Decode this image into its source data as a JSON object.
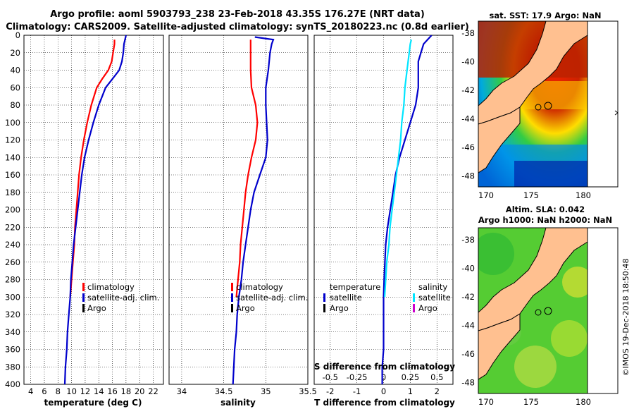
{
  "title": {
    "line1": "Argo profile: aoml 5903793_238 23-Feb-2018 43.35S 176.27E (NRT data)",
    "line2": "Climatology: CARS2009. Satellite-adjusted climatology: synTS_20180223.nc (0.8d earlier)"
  },
  "colors": {
    "climatology": "#ff0000",
    "satellite": "#0000cc",
    "argo": "#000000",
    "salinity_satellite": "#00e5ff",
    "salinity_argo": "#cc00cc"
  },
  "chart_data": [
    {
      "type": "line",
      "name": "temperature",
      "xlabel": "temperature (deg C)",
      "xlim": [
        3,
        23.5
      ],
      "xticks": [
        "4",
        "6",
        "8",
        "10",
        "12",
        "14",
        "16",
        "18",
        "20",
        "22"
      ],
      "ylim": [
        0,
        400
      ],
      "yticks": [
        "0",
        "20",
        "40",
        "60",
        "80",
        "100",
        "120",
        "140",
        "160",
        "180",
        "200",
        "220",
        "240",
        "260",
        "280",
        "300",
        "320",
        "340",
        "360",
        "380",
        "400"
      ],
      "series": [
        {
          "name": "climatology",
          "color": "#ff0000",
          "depth": [
            5,
            10,
            20,
            30,
            40,
            50,
            60,
            80,
            100,
            120,
            140,
            160,
            180,
            200,
            220,
            240,
            260,
            280,
            300
          ],
          "values": [
            16.3,
            16.3,
            16.1,
            15.9,
            15.4,
            14.5,
            13.7,
            12.9,
            12.3,
            11.8,
            11.4,
            11.1,
            10.9,
            10.7,
            10.5,
            10.4,
            10.2,
            10.0,
            9.8
          ]
        },
        {
          "name": "satellite-adj. clim.",
          "color": "#0000cc",
          "depth": [
            0,
            10,
            20,
            30,
            40,
            50,
            60,
            80,
            100,
            120,
            140,
            160,
            180,
            200,
            220,
            240,
            260,
            280,
            300,
            320,
            340,
            360,
            380,
            400
          ],
          "values": [
            18.0,
            17.7,
            17.6,
            17.4,
            17.0,
            16.0,
            15.0,
            14.0,
            13.2,
            12.5,
            11.9,
            11.5,
            11.2,
            10.9,
            10.6,
            10.3,
            10.1,
            9.9,
            9.8,
            9.6,
            9.4,
            9.3,
            9.1,
            9.0
          ]
        }
      ],
      "legend": [
        "climatology",
        "satellite-adj. clim.",
        "Argo"
      ]
    },
    {
      "type": "line",
      "name": "salinity",
      "xlabel": "salinity",
      "xlim": [
        33.85,
        35.5
      ],
      "xticks": [
        "34",
        "34.5",
        "35",
        "35.5"
      ],
      "ylim": [
        0,
        400
      ],
      "series": [
        {
          "name": "climatology",
          "color": "#ff0000",
          "depth": [
            5,
            20,
            40,
            60,
            80,
            100,
            120,
            140,
            160,
            180,
            200,
            220,
            240,
            260,
            280,
            300
          ],
          "values": [
            34.82,
            34.82,
            34.82,
            34.83,
            34.88,
            34.9,
            34.88,
            34.83,
            34.79,
            34.76,
            34.74,
            34.72,
            34.7,
            34.69,
            34.67,
            34.65
          ]
        },
        {
          "name": "satellite-adj. clim.",
          "color": "#0000cc",
          "depth": [
            2,
            5,
            10,
            20,
            40,
            60,
            80,
            100,
            120,
            140,
            160,
            180,
            200,
            220,
            240,
            260,
            280,
            300,
            320,
            340,
            360,
            380,
            400
          ],
          "values": [
            34.87,
            35.09,
            35.07,
            35.05,
            35.03,
            35.0,
            35.0,
            35.01,
            35.02,
            35.0,
            34.93,
            34.86,
            34.82,
            34.79,
            34.76,
            34.73,
            34.71,
            34.68,
            34.66,
            34.65,
            34.63,
            34.62,
            34.61
          ]
        }
      ],
      "legend": [
        "climatology",
        "satellite-adj. clim.",
        "Argo"
      ]
    },
    {
      "type": "line",
      "name": "difference from climatology",
      "xlabel": "T difference from climatology",
      "xlim": [
        -2.6,
        2.6
      ],
      "xticks": [
        "-2",
        "-1",
        "0",
        "1",
        "2"
      ],
      "top_xlabel": "S difference from climatology",
      "top_xticks": [
        "-0.5",
        "-0.25",
        "0",
        "0.25",
        "0.5"
      ],
      "ylim": [
        0,
        400
      ],
      "series": [
        {
          "name": "temperature satellite",
          "color": "#0000cc",
          "depth": [
            0,
            10,
            20,
            30,
            40,
            50,
            60,
            80,
            100,
            120,
            140,
            160,
            180,
            200,
            220,
            240,
            260,
            280,
            300,
            320,
            340,
            360,
            380,
            400
          ],
          "values": [
            1.8,
            1.5,
            1.4,
            1.3,
            1.3,
            1.3,
            1.3,
            1.2,
            1.0,
            0.8,
            0.6,
            0.45,
            0.35,
            0.25,
            0.15,
            0.08,
            0.05,
            0.02,
            0.0,
            0.0,
            0.0,
            0.0,
            -0.05,
            -0.05
          ]
        },
        {
          "name": "salinity satellite",
          "color": "#00e5ff",
          "depth": [
            5,
            10,
            20,
            40,
            60,
            80,
            100,
            120,
            140,
            160,
            180,
            200,
            220,
            240,
            260,
            280,
            300
          ],
          "values": [
            0.26,
            0.25,
            0.24,
            0.22,
            0.2,
            0.19,
            0.17,
            0.16,
            0.14,
            0.12,
            0.1,
            0.08,
            0.06,
            0.05,
            0.03,
            0.02,
            0.01
          ]
        }
      ],
      "legend_left": [
        "temperature",
        "satellite",
        "Argo"
      ],
      "legend_right": [
        "salinity",
        "satellite",
        "Argo"
      ]
    }
  ],
  "maps": [
    {
      "title": "sat. SST: 17.9 Argo: NaN",
      "xticks": [
        "170",
        "175",
        "180"
      ],
      "yticks": [
        "-38",
        "-40",
        "-42",
        "-44",
        "-46",
        "-48"
      ]
    },
    {
      "title_line1": "Altim. SLA: 0.042",
      "title_line2": "Argo h1000: NaN h2000: NaN",
      "xticks": [
        "170",
        "175",
        "180"
      ],
      "yticks": [
        "-38",
        "-40",
        "-42",
        "-44",
        "-46",
        "-48"
      ]
    }
  ],
  "credit": "©IMOS 19-Dec-2018 18:50:48"
}
